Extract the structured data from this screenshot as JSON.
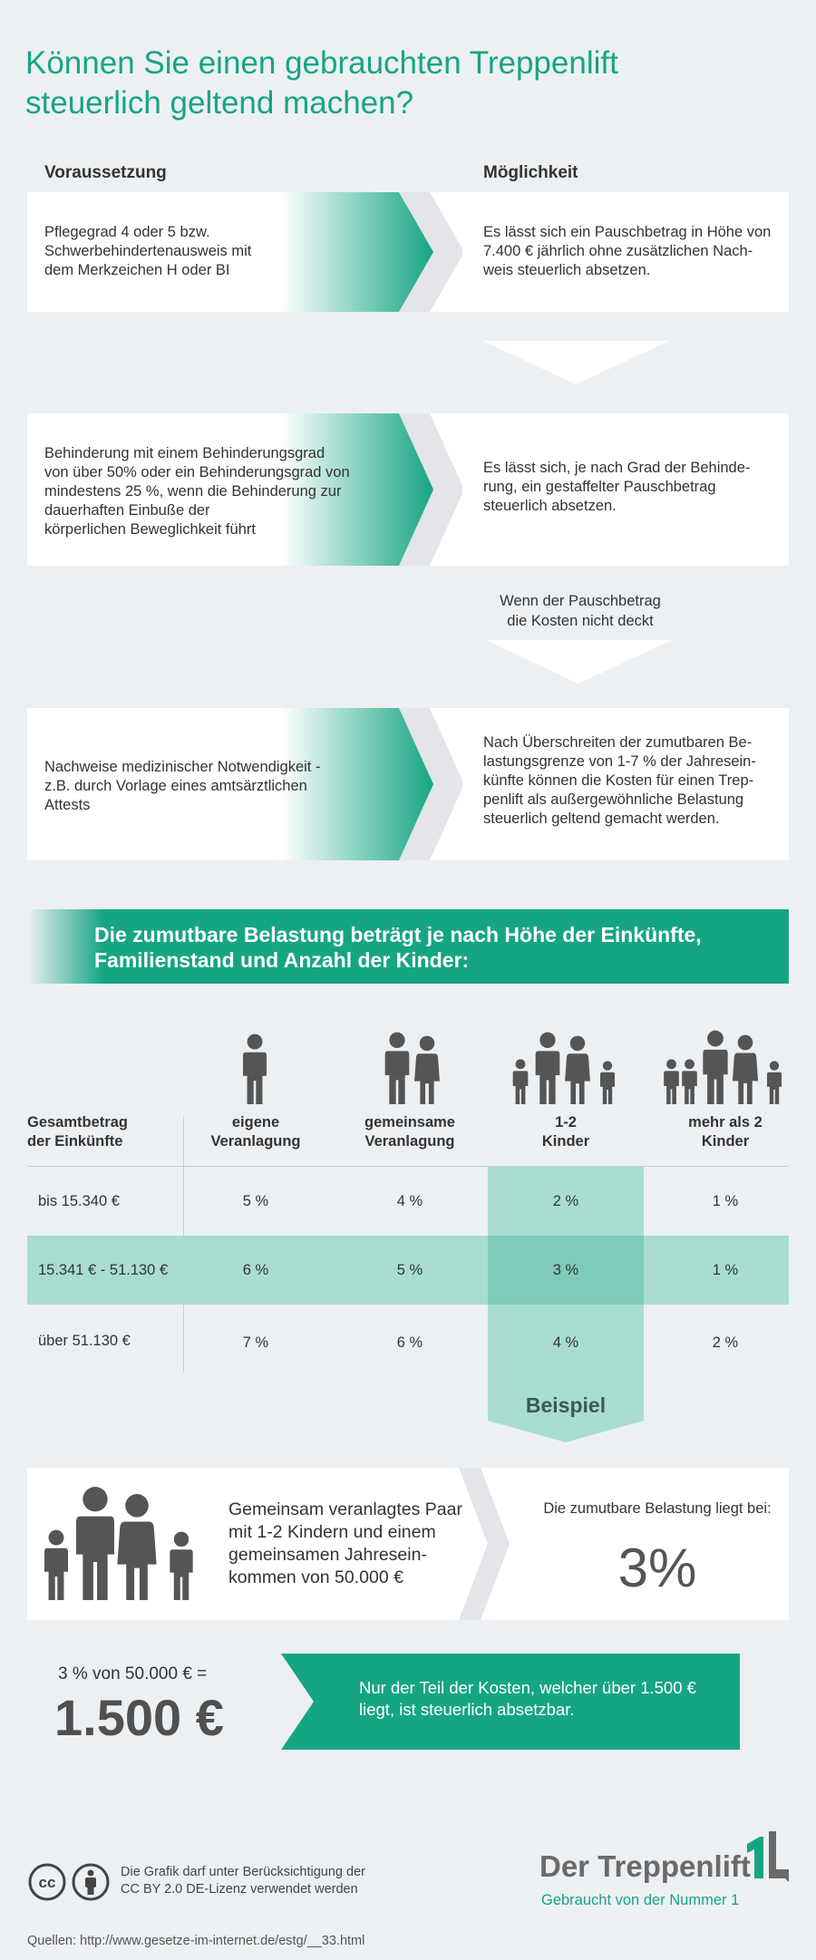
{
  "title": {
    "line1": "Können Sie einen gebrauchten Treppenlift",
    "line2": "steuerlich geltend machen?"
  },
  "columns": {
    "condition": "Voraussetzung",
    "possibility": "Möglichkeit"
  },
  "cards": [
    {
      "condition": [
        "Pflegegrad 4 oder 5 bzw.",
        "Schwerbehindertenausweis mit",
        "dem Merkzeichen H oder BI"
      ],
      "possibility": [
        "Es lässt sich ein Pauschbetrag in Höhe von",
        "7.400 € jährlich ohne zusätzlichen Nach-",
        "weis steuerlich absetzen."
      ]
    },
    {
      "condition": [
        "Behinderung mit einem Behinderungsgrad",
        "von über 50% oder ein Behinderungsgrad von",
        "mindestens 25 %, wenn die Behinderung zur",
        "dauerhaften Einbuße der",
        "körperlichen Beweglichkeit führt"
      ],
      "possibility": [
        "Es lässt sich, je nach Grad der Behinde-",
        "rung, ein gestaffelter Pauschbetrag",
        "steuerlich absetzen."
      ]
    },
    {
      "condition": [
        "Nachweise medizinischer Notwendigkeit -",
        "z.B. durch Vorlage eines amtsärztlichen",
        "Attests"
      ],
      "possibility": [
        "Nach Überschreiten der zumutbaren Be-",
        "lastungsgrenze von 1-7 % der Jahresein-",
        "künfte können die Kosten für einen Trep-",
        "penlift  als außergewöhnliche Belastung",
        "steuerlich geltend gemacht werden."
      ]
    }
  ],
  "note_wenn": [
    "Wenn der Pauschbetrag",
    "die Kosten nicht deckt"
  ],
  "banner": {
    "line1": "Die zumutbare Belastung beträgt je nach Höhe der Einkünfte,",
    "line2": "Familienstand und Anzahl der Kinder:"
  },
  "table": {
    "row_header": [
      "Gesamtbetrag",
      "der Einkünfte"
    ],
    "columns": [
      {
        "icon": "single-person-icon",
        "label": [
          "eigene",
          "Veranlagung"
        ]
      },
      {
        "icon": "couple-icon",
        "label": [
          "gemeinsame",
          "Veranlagung"
        ]
      },
      {
        "icon": "family-two-kids-icon",
        "label": [
          "1-2",
          "Kinder"
        ]
      },
      {
        "icon": "family-three-kids-icon",
        "label": [
          "mehr als 2",
          "Kinder"
        ]
      }
    ],
    "rows": [
      {
        "income": "bis 15.340 €",
        "values": [
          "5 %",
          "4 %",
          "2 %",
          "1 %"
        ]
      },
      {
        "income": "15.341 € - 51.130 €",
        "values": [
          "6 %",
          "5 %",
          "3 %",
          "1 %"
        ]
      },
      {
        "income": "über 51.130 €",
        "values": [
          "7 %",
          "6 %",
          "4 %",
          "2 %"
        ]
      }
    ]
  },
  "example": {
    "tag": "Beispiel",
    "description": [
      "Gemeinsam veranlagtes Paar",
      "mit 1-2 Kindern und einem",
      "gemeinsamen Jahresein-",
      "kommen von 50.000 €"
    ],
    "label": "Die zumutbare Belastung liegt bei:",
    "percent": "3%"
  },
  "calculation": {
    "formula": "3 % von 50.000 € =",
    "result": "1.500 €",
    "note": [
      "Nur der Teil der Kosten, welcher über 1.500 €",
      "liegt, ist steuerlich absetzbar."
    ]
  },
  "footer": {
    "license_icons": [
      "cc-icon",
      "by-attribution-icon"
    ],
    "license_text": [
      "Die Grafik darf unter Berücksichtigung der",
      "CC BY 2.0 DE-Lizenz verwendet werden"
    ],
    "brand_name": "Der Treppenlift",
    "brand_slogan": "Gebraucht von der Nummer 1",
    "brand_logo": "1L",
    "sources": "Quellen: http://www.gesetze-im-internet.de/estg/__33.html"
  },
  "colors": {
    "accent": "#16a583",
    "accent_light": "#a8ddd0",
    "background": "#edf0f3"
  }
}
